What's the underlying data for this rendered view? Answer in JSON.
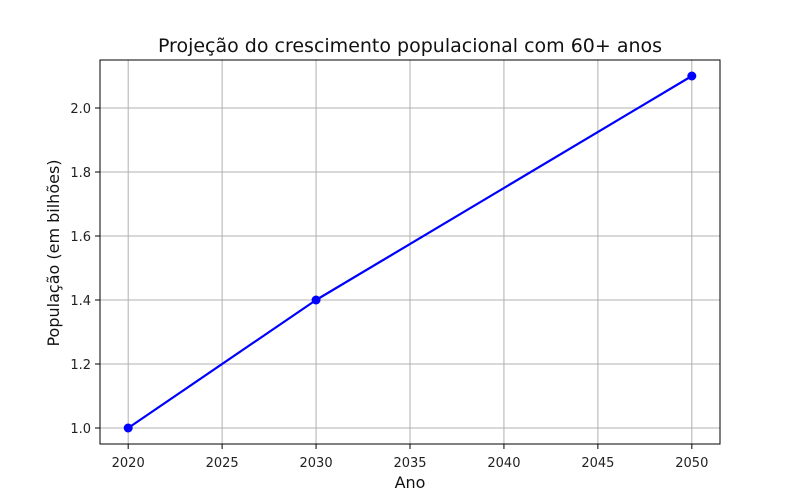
{
  "chart_data": {
    "type": "line",
    "title": "Projeção do crescimento populacional com 60+ anos",
    "xlabel": "Ano",
    "ylabel": "População (em bilhões)",
    "x": [
      2020,
      2030,
      2050
    ],
    "series": [
      {
        "values": [
          1.0,
          1.4,
          2.1
        ]
      }
    ],
    "xlim": [
      2018.5,
      2051.5
    ],
    "ylim": [
      0.95,
      2.15
    ],
    "xticks": [
      2020,
      2025,
      2030,
      2035,
      2040,
      2045,
      2050
    ],
    "yticks": [
      1.0,
      1.2,
      1.4,
      1.6,
      1.8,
      2.0
    ],
    "ytick_labels": [
      "1.0",
      "1.2",
      "1.4",
      "1.6",
      "1.8",
      "2.0"
    ],
    "grid": true,
    "colors": {
      "line": "#0000ff",
      "grid": "#b0b0b0",
      "axis": "#000000"
    },
    "marker": "circle"
  }
}
